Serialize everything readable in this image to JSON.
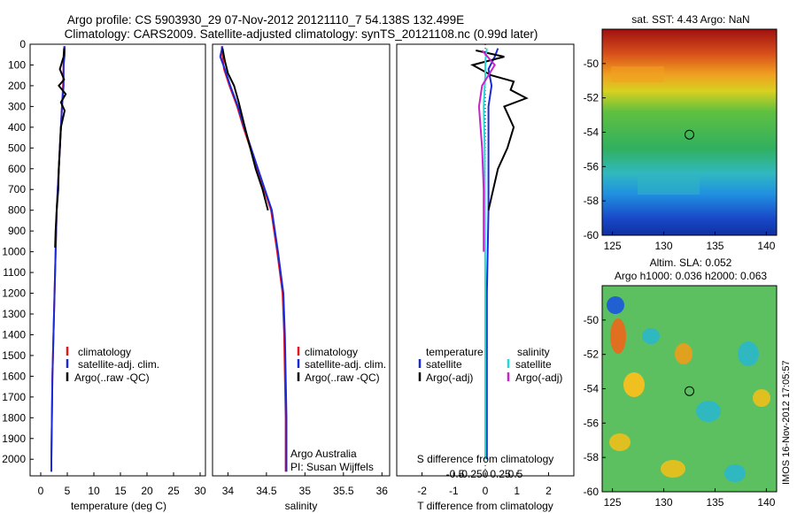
{
  "title_line1": "Argo profile: CS 5903930_29 07-Nov-2012 20121110_7 54.138S 132.499E",
  "title_line2": "Climatology: CARS2009. Satellite-adjusted climatology: synTS_20121108.nc (0.99d later)",
  "side_stamp": "IMOS 16-Nov-2012 17:05:57",
  "colors": {
    "climatology": "#e8141e",
    "satellite": "#1a2ad8",
    "argo": "#000000",
    "cyan": "#22d8d8",
    "magenta": "#cc22cc"
  },
  "chart_data": [
    {
      "type": "line",
      "xlabel": "temperature (deg C)",
      "xlim": [
        -2,
        31
      ],
      "xticks": [
        0,
        5,
        10,
        15,
        20,
        25,
        30
      ],
      "ylim": [
        2080,
        0
      ],
      "yticks": [
        0,
        100,
        200,
        300,
        400,
        500,
        600,
        700,
        800,
        900,
        1000,
        1100,
        1200,
        1300,
        1400,
        1500,
        1600,
        1700,
        1800,
        1900,
        2000
      ],
      "legend": [
        "climatology",
        "satellite-adj. clim.",
        "Argo(..raw -QC)"
      ],
      "series": [
        {
          "name": "climatology",
          "color": "#e8141e",
          "x": [
            4.4,
            4.4,
            4.3,
            4.2,
            4.0,
            3.8,
            3.6,
            3.4,
            3.2,
            3.0,
            2.8,
            2.6,
            2.4,
            2.2,
            2.1,
            2.0,
            2.0
          ],
          "y": [
            10,
            50,
            100,
            200,
            300,
            400,
            500,
            600,
            700,
            800,
            1000,
            1200,
            1400,
            1600,
            1800,
            2000,
            2060
          ]
        },
        {
          "name": "satellite-adj. clim.",
          "color": "#1a2ad8",
          "x": [
            4.5,
            4.5,
            4.3,
            4.3,
            4.0,
            3.8,
            3.6,
            3.4,
            3.2,
            3.0,
            2.8,
            2.6,
            2.4,
            2.2,
            2.1,
            2.0,
            2.0
          ],
          "y": [
            10,
            50,
            100,
            200,
            300,
            400,
            500,
            600,
            700,
            800,
            1000,
            1200,
            1400,
            1600,
            1800,
            2000,
            2060
          ]
        },
        {
          "name": "Argo(..raw -QC)",
          "color": "#000000",
          "x": [
            4.4,
            4.3,
            3.6,
            4.4,
            3.4,
            4.7,
            3.8,
            4.5,
            3.8,
            3.6,
            3.4,
            3.3,
            3.0,
            2.8,
            2.7
          ],
          "y": [
            20,
            60,
            120,
            170,
            200,
            240,
            280,
            320,
            400,
            500,
            600,
            700,
            800,
            900,
            980
          ]
        }
      ]
    },
    {
      "type": "line",
      "xlabel": "salinity",
      "xlim": [
        33.8,
        36.1
      ],
      "xticks": [
        34,
        34.5,
        35,
        35.5,
        36
      ],
      "ylim": [
        2080,
        0
      ],
      "legend": [
        "climatology",
        "satellite-adj. clim.",
        "Argo(..raw -QC)"
      ],
      "annotation": [
        "Argo Australia",
        "PI: Susan Wijffels"
      ],
      "series": [
        {
          "name": "climatology",
          "color": "#e8141e",
          "x": [
            33.92,
            33.93,
            33.95,
            34.02,
            34.12,
            34.2,
            34.29,
            34.38,
            34.47,
            34.56,
            34.64,
            34.71,
            34.73,
            34.74,
            34.75,
            34.75
          ],
          "y": [
            10,
            60,
            120,
            200,
            300,
            400,
            500,
            600,
            700,
            800,
            1000,
            1200,
            1400,
            1600,
            1800,
            2060
          ]
        },
        {
          "name": "satellite-adj. clim.",
          "color": "#1a2ad8",
          "x": [
            33.93,
            33.9,
            33.96,
            34.03,
            34.13,
            34.21,
            34.3,
            34.39,
            34.48,
            34.57,
            34.65,
            34.72,
            34.74,
            34.75,
            34.76,
            34.76
          ],
          "y": [
            10,
            60,
            120,
            200,
            300,
            400,
            500,
            600,
            700,
            800,
            1000,
            1200,
            1400,
            1600,
            1800,
            2060
          ]
        },
        {
          "name": "Argo(..raw -QC)",
          "color": "#000000",
          "x": [
            33.93,
            33.96,
            34.0,
            34.08,
            34.14,
            34.22,
            34.29,
            34.36,
            34.45,
            34.52
          ],
          "y": [
            20,
            80,
            140,
            200,
            280,
            400,
            500,
            600,
            700,
            800
          ]
        }
      ]
    },
    {
      "type": "line",
      "xlabel": "T difference from climatology",
      "xlabel_top": "S difference from climatology",
      "xlim": [
        -2.8,
        2.8
      ],
      "xticks": [
        -2,
        -1,
        0,
        1,
        2
      ],
      "xticks_top": [
        -0.5,
        -0.25,
        0,
        0.25,
        0.5
      ],
      "ylim": [
        2080,
        0
      ],
      "legend_left_title": "temperature",
      "legend_right_title": "salinity",
      "legend": [
        "satellite",
        "Argo(-adj)",
        "satellite",
        "Argo(-adj)"
      ],
      "series": [
        {
          "name": "temperature satellite",
          "color": "#1a2ad8",
          "x": [
            0.4,
            0.3,
            0.1,
            0.2,
            0.1,
            0.1,
            0.1,
            0.05,
            0.05,
            0.05
          ],
          "y": [
            20,
            60,
            120,
            200,
            300,
            500,
            800,
            1200,
            1600,
            2000
          ]
        },
        {
          "name": "temperature Argo(-adj)",
          "color": "#000000",
          "x": [
            -0.3,
            0.6,
            -0.4,
            0.2,
            0.9,
            0.8,
            1.3,
            0.6,
            0.9,
            0.7,
            0.4,
            0.1
          ],
          "y": [
            30,
            60,
            100,
            150,
            180,
            220,
            260,
            300,
            400,
            500,
            600,
            800
          ]
        },
        {
          "name": "salinity satellite",
          "color": "#22d8d8",
          "x": [
            0.05,
            0.0,
            0.0,
            -0.05,
            -0.02,
            -0.01,
            0.0,
            0.0,
            0.0
          ],
          "y": [
            20,
            80,
            150,
            300,
            500,
            800,
            1200,
            1600,
            2000
          ]
        },
        {
          "name": "salinity Argo(-adj)",
          "color": "#cc22cc",
          "x": [
            -0.1,
            0.3,
            -0.1,
            -0.2,
            -0.1,
            -0.05,
            -0.05
          ],
          "y": [
            30,
            100,
            200,
            300,
            500,
            700,
            1000
          ]
        }
      ]
    },
    {
      "type": "heatmap",
      "title": "sat. SST: 4.43 Argo: NaN",
      "xlim": [
        124,
        141
      ],
      "xticks": [
        125,
        130,
        135,
        140
      ],
      "ylim": [
        -60,
        -48
      ],
      "yticks": [
        -50,
        -52,
        -54,
        -56,
        -58,
        -60
      ],
      "marker": {
        "lon": 132.5,
        "lat": -54.14
      }
    },
    {
      "type": "heatmap",
      "title": "Altim. SLA: 0.052",
      "subtitle": "Argo h1000: 0.036 h2000: 0.063",
      "xlim": [
        124,
        141
      ],
      "xticks": [
        125,
        130,
        135,
        140
      ],
      "ylim": [
        -60,
        -48
      ],
      "yticks": [
        -50,
        -52,
        -54,
        -56,
        -58,
        -60
      ],
      "marker": {
        "lon": 132.5,
        "lat": -54.14
      }
    }
  ]
}
